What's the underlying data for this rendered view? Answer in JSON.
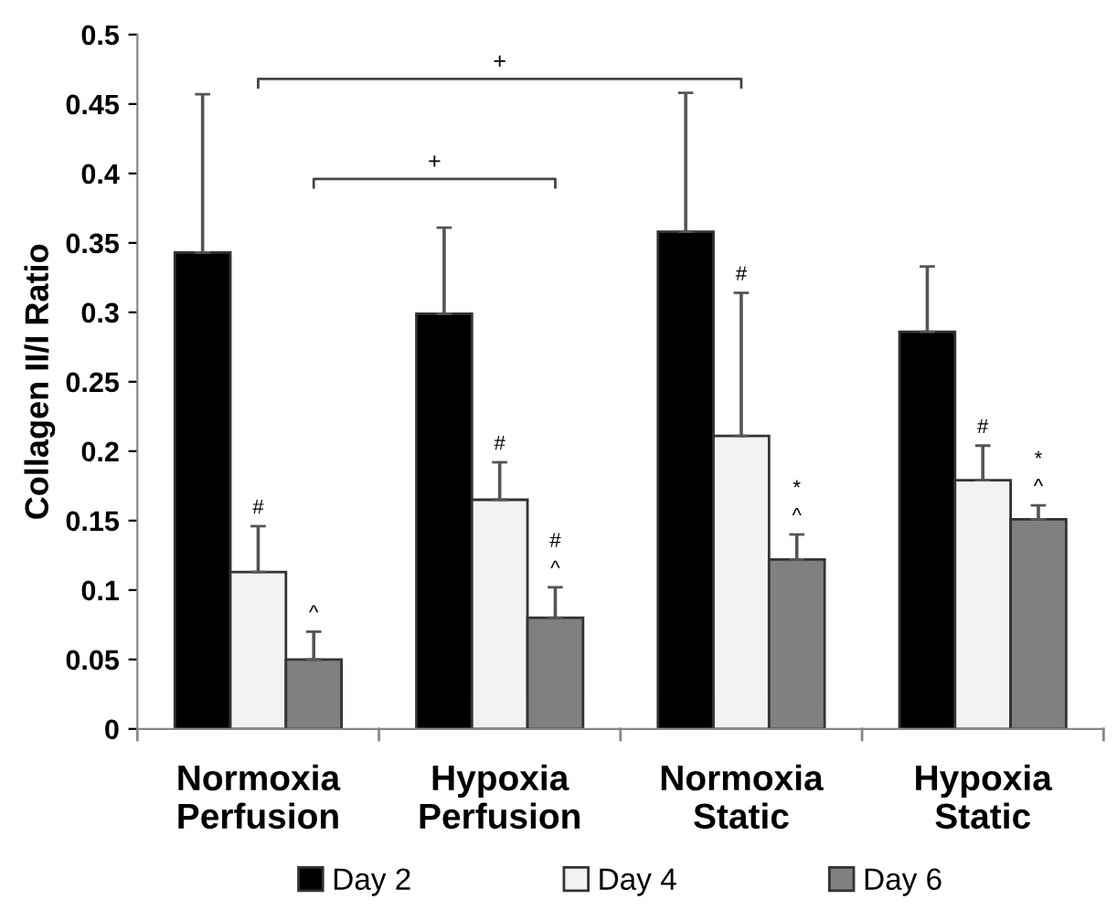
{
  "chart_data": {
    "type": "bar",
    "ylabel": "Collagen II/I Ratio",
    "categories": [
      "Normoxia\nPerfusion",
      "Hypoxia\nPerfusion",
      "Normoxia\nStatic",
      "Hypoxia\nStatic"
    ],
    "series": [
      {
        "name": "Day 2",
        "color": "#000000",
        "values": [
          0.343,
          0.299,
          0.358,
          0.286
        ],
        "errors": [
          [
            0.343,
            0.457
          ],
          [
            0.299,
            0.361
          ],
          [
            0.358,
            0.458
          ],
          [
            0.286,
            0.333
          ]
        ]
      },
      {
        "name": "Day 4",
        "color": "#f2f2f2",
        "values": [
          0.113,
          0.165,
          0.211,
          0.179
        ],
        "errors": [
          [
            0.113,
            0.146
          ],
          [
            0.165,
            0.192
          ],
          [
            0.211,
            0.314
          ],
          [
            0.179,
            0.204
          ]
        ]
      },
      {
        "name": "Day 6",
        "color": "#808080",
        "values": [
          0.05,
          0.08,
          0.122,
          0.151
        ],
        "errors": [
          [
            0.05,
            0.07
          ],
          [
            0.08,
            0.102
          ],
          [
            0.122,
            0.14
          ],
          [
            0.151,
            0.161
          ]
        ]
      }
    ],
    "ylim": [
      0,
      0.5
    ],
    "yticks": [
      0,
      0.05,
      0.1,
      0.15,
      0.2,
      0.25,
      0.3,
      0.35,
      0.4,
      0.45,
      0.5
    ],
    "legend": "bottom",
    "grid": false,
    "annotations": [
      "#",
      "^",
      "#",
      "#\n^",
      "#",
      "*\n^",
      "#",
      "*\n^",
      "+",
      "+"
    ]
  }
}
